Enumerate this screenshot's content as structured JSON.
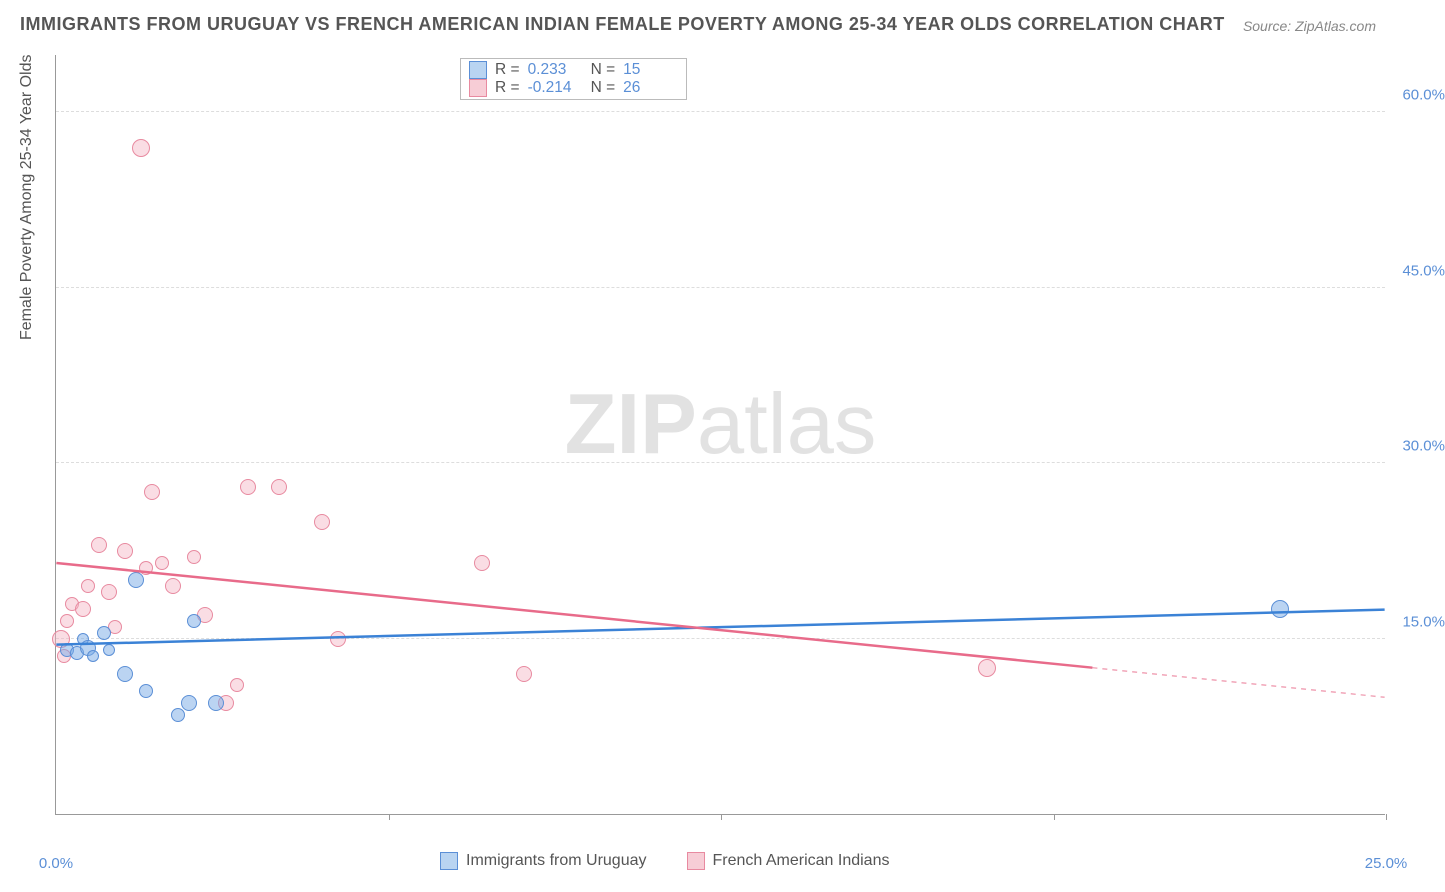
{
  "title": "IMMIGRANTS FROM URUGUAY VS FRENCH AMERICAN INDIAN FEMALE POVERTY AMONG 25-34 YEAR OLDS CORRELATION CHART",
  "source": "Source: ZipAtlas.com",
  "watermark_bold": "ZIP",
  "watermark_light": "atlas",
  "yaxis_title": "Female Poverty Among 25-34 Year Olds",
  "chart": {
    "type": "scatter",
    "xlim": [
      0,
      25
    ],
    "ylim": [
      0,
      65
    ],
    "yticks": [
      15,
      30,
      45,
      60
    ],
    "ytick_labels": [
      "15.0%",
      "30.0%",
      "45.0%",
      "60.0%"
    ],
    "xticks": [
      0,
      12.5,
      25
    ],
    "xtick_labels": [
      "0.0%",
      "",
      "25.0%"
    ],
    "background_color": "#ffffff",
    "grid_color": "#dddddd",
    "point_radius_min": 6,
    "point_radius_max": 12,
    "series": [
      {
        "name": "Immigrants from Uruguay",
        "color_fill": "rgba(120,170,230,0.5)",
        "color_stroke": "#5b8fd6",
        "R": "0.233",
        "N": "15",
        "trend": {
          "x1": 0,
          "y1": 14.5,
          "x2": 25,
          "y2": 17.5,
          "solid_end_x": 25,
          "color": "#3b82d6",
          "width": 2.5
        },
        "points": [
          {
            "x": 0.2,
            "y": 14.0,
            "r": 7
          },
          {
            "x": 0.4,
            "y": 13.8,
            "r": 7
          },
          {
            "x": 0.5,
            "y": 15.0,
            "r": 6
          },
          {
            "x": 0.6,
            "y": 14.2,
            "r": 8
          },
          {
            "x": 0.7,
            "y": 13.5,
            "r": 6
          },
          {
            "x": 0.9,
            "y": 15.5,
            "r": 7
          },
          {
            "x": 1.0,
            "y": 14.0,
            "r": 6
          },
          {
            "x": 1.3,
            "y": 12.0,
            "r": 8
          },
          {
            "x": 1.5,
            "y": 20.0,
            "r": 8
          },
          {
            "x": 1.7,
            "y": 10.5,
            "r": 7
          },
          {
            "x": 2.3,
            "y": 8.5,
            "r": 7
          },
          {
            "x": 2.5,
            "y": 9.5,
            "r": 8
          },
          {
            "x": 2.6,
            "y": 16.5,
            "r": 7
          },
          {
            "x": 3.0,
            "y": 9.5,
            "r": 8
          },
          {
            "x": 23.0,
            "y": 17.5,
            "r": 9
          }
        ]
      },
      {
        "name": "French American Indians",
        "color_fill": "rgba(245,180,195,0.45)",
        "color_stroke": "#e88aa0",
        "R": "-0.214",
        "N": "26",
        "trend": {
          "x1": 0,
          "y1": 21.5,
          "x2": 25,
          "y2": 10.0,
          "solid_end_x": 19.5,
          "color": "#e86b8a",
          "width": 2.5
        },
        "points": [
          {
            "x": 0.1,
            "y": 15.0,
            "r": 9
          },
          {
            "x": 0.15,
            "y": 13.5,
            "r": 7
          },
          {
            "x": 0.2,
            "y": 16.5,
            "r": 7
          },
          {
            "x": 0.3,
            "y": 18.0,
            "r": 7
          },
          {
            "x": 0.5,
            "y": 17.5,
            "r": 8
          },
          {
            "x": 0.6,
            "y": 19.5,
            "r": 7
          },
          {
            "x": 0.8,
            "y": 23.0,
            "r": 8
          },
          {
            "x": 1.0,
            "y": 19.0,
            "r": 8
          },
          {
            "x": 1.1,
            "y": 16.0,
            "r": 7
          },
          {
            "x": 1.3,
            "y": 22.5,
            "r": 8
          },
          {
            "x": 1.6,
            "y": 57.0,
            "r": 9
          },
          {
            "x": 1.7,
            "y": 21.0,
            "r": 7
          },
          {
            "x": 1.8,
            "y": 27.5,
            "r": 8
          },
          {
            "x": 2.0,
            "y": 21.5,
            "r": 7
          },
          {
            "x": 2.2,
            "y": 19.5,
            "r": 8
          },
          {
            "x": 2.6,
            "y": 22.0,
            "r": 7
          },
          {
            "x": 2.8,
            "y": 17.0,
            "r": 8
          },
          {
            "x": 3.2,
            "y": 9.5,
            "r": 8
          },
          {
            "x": 3.4,
            "y": 11.0,
            "r": 7
          },
          {
            "x": 3.6,
            "y": 28.0,
            "r": 8
          },
          {
            "x": 4.2,
            "y": 28.0,
            "r": 8
          },
          {
            "x": 5.0,
            "y": 25.0,
            "r": 8
          },
          {
            "x": 5.3,
            "y": 15.0,
            "r": 8
          },
          {
            "x": 8.0,
            "y": 21.5,
            "r": 8
          },
          {
            "x": 8.8,
            "y": 12.0,
            "r": 8
          },
          {
            "x": 17.5,
            "y": 12.5,
            "r": 9
          }
        ]
      }
    ]
  },
  "legend_top": {
    "rows": [
      {
        "swatch": "blue",
        "R_label": "R =",
        "R_val": "0.233",
        "N_label": "N =",
        "N_val": "15"
      },
      {
        "swatch": "pink",
        "R_label": "R =",
        "R_val": "-0.214",
        "N_label": "N =",
        "N_val": "26"
      }
    ]
  },
  "legend_bottom": [
    {
      "swatch": "blue",
      "label": "Immigrants from Uruguay"
    },
    {
      "swatch": "pink",
      "label": "French American Indians"
    }
  ]
}
